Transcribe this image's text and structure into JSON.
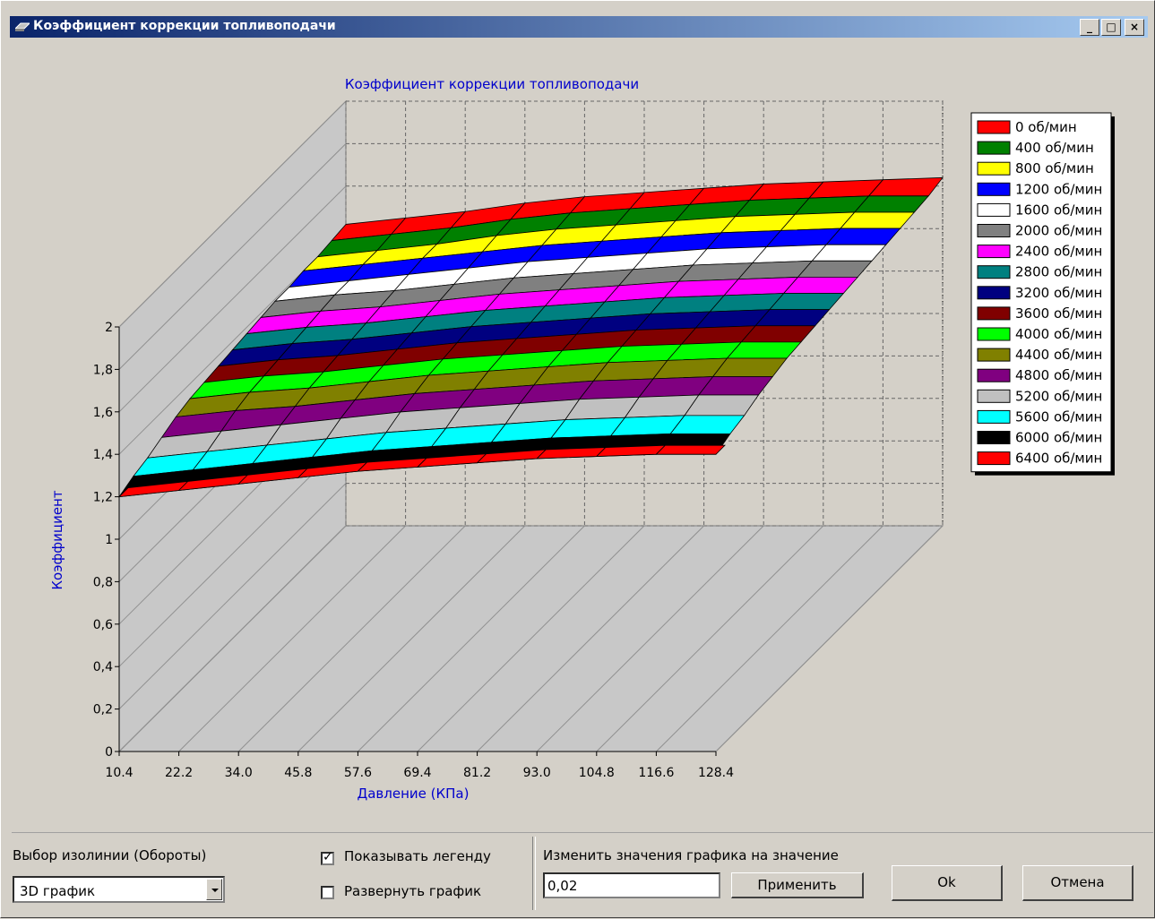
{
  "window": {
    "title": "Коэффициент коррекции топливоподачи",
    "buttons": {
      "minimize": "_",
      "maximize": "□",
      "close": "×"
    }
  },
  "chart_data": {
    "type": "surface-3d",
    "title": "Коэффициент коррекции топливоподачи",
    "xlabel": "Давление (КПа)",
    "ylabel": "Коэффициент",
    "x_ticks": [
      "10.4",
      "22.2",
      "34.0",
      "45.8",
      "57.6",
      "69.4",
      "81.2",
      "93.0",
      "104.8",
      "116.6",
      "128.4"
    ],
    "y_ticks": [
      "0",
      "0,2",
      "0,4",
      "0,6",
      "0,8",
      "1",
      "1,2",
      "1,4",
      "1,6",
      "1,8",
      "2"
    ],
    "ylim": [
      0,
      2
    ],
    "grid": true,
    "legend_position": "right",
    "series": [
      {
        "name": "0 об/мин",
        "color": "#ff0000",
        "values": [
          1.42,
          1.45,
          1.48,
          1.52,
          1.55,
          1.57,
          1.59,
          1.61,
          1.62,
          1.63,
          1.64
        ]
      },
      {
        "name": "400 об/мин",
        "color": "#008000",
        "values": [
          1.41,
          1.44,
          1.47,
          1.51,
          1.54,
          1.56,
          1.58,
          1.6,
          1.61,
          1.62,
          1.62
        ]
      },
      {
        "name": "800 об/мин",
        "color": "#ffff00",
        "values": [
          1.4,
          1.43,
          1.46,
          1.5,
          1.53,
          1.55,
          1.57,
          1.59,
          1.6,
          1.61,
          1.61
        ]
      },
      {
        "name": "1200 об/мин",
        "color": "#0000ff",
        "values": [
          1.4,
          1.43,
          1.46,
          1.49,
          1.52,
          1.54,
          1.56,
          1.58,
          1.59,
          1.6,
          1.6
        ]
      },
      {
        "name": "1600 об/мин",
        "color": "#ffffff",
        "values": [
          1.39,
          1.42,
          1.45,
          1.48,
          1.51,
          1.53,
          1.55,
          1.57,
          1.58,
          1.59,
          1.59
        ]
      },
      {
        "name": "2000 об/мин",
        "color": "#808080",
        "values": [
          1.39,
          1.42,
          1.44,
          1.47,
          1.5,
          1.52,
          1.54,
          1.56,
          1.57,
          1.58,
          1.58
        ]
      },
      {
        "name": "2400 об/мин",
        "color": "#ff00ff",
        "values": [
          1.38,
          1.41,
          1.43,
          1.46,
          1.49,
          1.51,
          1.53,
          1.55,
          1.56,
          1.57,
          1.57
        ]
      },
      {
        "name": "2800 об/мин",
        "color": "#008080",
        "values": [
          1.37,
          1.4,
          1.42,
          1.45,
          1.48,
          1.5,
          1.52,
          1.54,
          1.55,
          1.56,
          1.56
        ]
      },
      {
        "name": "3200 об/мин",
        "color": "#000080",
        "values": [
          1.36,
          1.39,
          1.41,
          1.44,
          1.47,
          1.49,
          1.51,
          1.53,
          1.54,
          1.55,
          1.55
        ]
      },
      {
        "name": "3600 об/мин",
        "color": "#800000",
        "values": [
          1.35,
          1.38,
          1.4,
          1.43,
          1.46,
          1.48,
          1.5,
          1.52,
          1.53,
          1.54,
          1.54
        ]
      },
      {
        "name": "4000 об/мин",
        "color": "#00ff00",
        "values": [
          1.34,
          1.37,
          1.39,
          1.42,
          1.45,
          1.47,
          1.49,
          1.51,
          1.52,
          1.53,
          1.53
        ]
      },
      {
        "name": "4400 об/мин",
        "color": "#808000",
        "values": [
          1.33,
          1.36,
          1.38,
          1.41,
          1.44,
          1.46,
          1.48,
          1.5,
          1.51,
          1.52,
          1.52
        ]
      },
      {
        "name": "4800 об/мин",
        "color": "#800080",
        "values": [
          1.31,
          1.34,
          1.36,
          1.39,
          1.42,
          1.44,
          1.46,
          1.48,
          1.49,
          1.5,
          1.5
        ]
      },
      {
        "name": "5200 об/мин",
        "color": "#c0c0c0",
        "values": [
          1.28,
          1.31,
          1.34,
          1.37,
          1.4,
          1.42,
          1.44,
          1.46,
          1.47,
          1.48,
          1.48
        ]
      },
      {
        "name": "5600 об/мин",
        "color": "#00ffff",
        "values": [
          1.25,
          1.28,
          1.31,
          1.34,
          1.37,
          1.39,
          1.41,
          1.43,
          1.44,
          1.45,
          1.45
        ]
      },
      {
        "name": "6000 об/мин",
        "color": "#000000",
        "values": [
          1.23,
          1.26,
          1.29,
          1.32,
          1.35,
          1.37,
          1.39,
          1.41,
          1.42,
          1.43,
          1.43
        ]
      },
      {
        "name": "6400 об/мин",
        "color": "#ff0000",
        "values": [
          1.2,
          1.23,
          1.26,
          1.29,
          1.32,
          1.34,
          1.36,
          1.38,
          1.39,
          1.4,
          1.4
        ]
      }
    ]
  },
  "controls": {
    "isoline_label": "Выбор изолинии (Обороты)",
    "isoline_value": "3D график",
    "show_legend_label": "Показывать легенду",
    "show_legend_checked": true,
    "expand_label": "Развернуть график",
    "expand_checked": false,
    "change_label": "Изменить значения графика на значение",
    "change_value": "0,02",
    "apply_label": "Применить",
    "ok_label": "Ok",
    "cancel_label": "Отмена"
  }
}
